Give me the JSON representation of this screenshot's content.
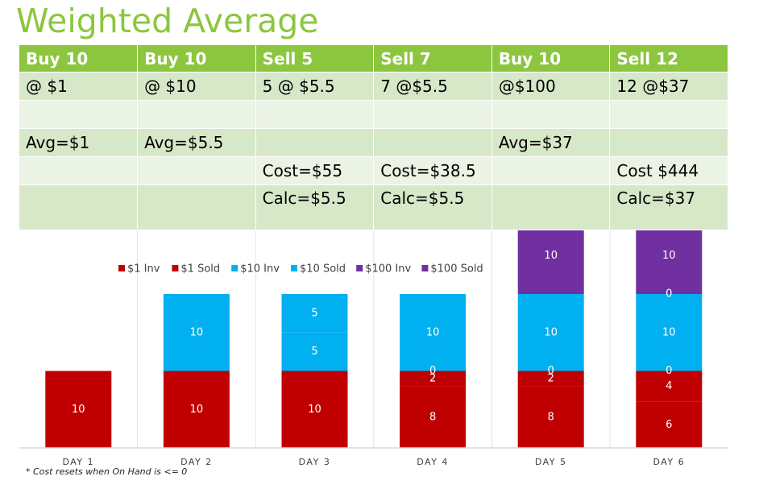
{
  "title": "Weighted Average",
  "footnote": "* Cost resets when On Hand is <= 0",
  "table": {
    "headers": [
      "Buy 10",
      "Buy 10",
      "Sell 5",
      "Sell 7",
      "Buy 10",
      "Sell 12"
    ],
    "rows": [
      [
        "@ $1",
        "@ $10",
        "5 @ $5.5",
        "7 @$5.5",
        "@$100",
        "12 @$37"
      ],
      [
        "",
        "",
        "",
        "",
        "",
        ""
      ],
      [
        "Avg=$1",
        "Avg=$5.5",
        "",
        "",
        "Avg=$37",
        ""
      ],
      [
        "",
        "",
        "Cost=$55",
        "Cost=$38.5",
        "",
        "Cost $444"
      ],
      [
        "",
        "",
        "Calc=$5.5",
        "Calc=$5.5",
        "",
        "Calc=$37"
      ]
    ]
  },
  "chart_data": {
    "type": "bar",
    "stacked": true,
    "categories": [
      "DAY 1",
      "DAY 2",
      "DAY 3",
      "DAY 4",
      "DAY 5",
      "DAY 6"
    ],
    "series": [
      {
        "name": "$1 Inv",
        "color": "#c00000",
        "values": [
          10,
          10,
          10,
          8,
          8,
          6
        ]
      },
      {
        "name": "$1 Sold",
        "color": "#c00000",
        "values": [
          null,
          null,
          null,
          2,
          2,
          4
        ]
      },
      {
        "name": "$10 Inv",
        "color": "#00b0f0",
        "values": [
          null,
          10,
          5,
          0,
          0,
          0
        ]
      },
      {
        "name": "$10 Sold",
        "color": "#00b0f0",
        "values": [
          null,
          null,
          5,
          10,
          10,
          10
        ]
      },
      {
        "name": "$100 Inv",
        "color": "#7030a0",
        "values": [
          null,
          null,
          null,
          null,
          10,
          0
        ]
      },
      {
        "name": "$100 Sold",
        "color": "#7030a0",
        "values": [
          null,
          null,
          null,
          null,
          null,
          10
        ]
      }
    ],
    "ylim": [
      0,
      30
    ],
    "grid": false,
    "legend": "top"
  }
}
